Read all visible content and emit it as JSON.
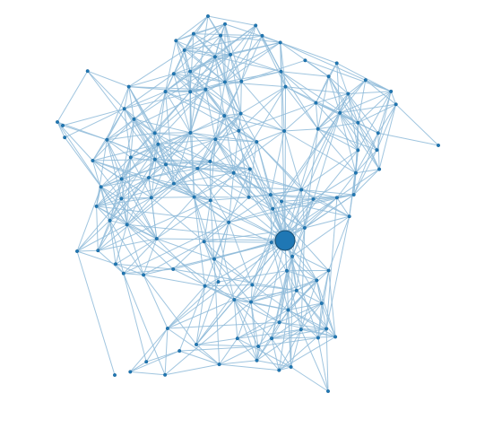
{
  "graph": {
    "node_color": "#1f77b4",
    "edge_color": "#8fbbd9",
    "background": "#ffffff",
    "node_count": 120,
    "random_seed": 7,
    "hub_node_count": 1
  }
}
